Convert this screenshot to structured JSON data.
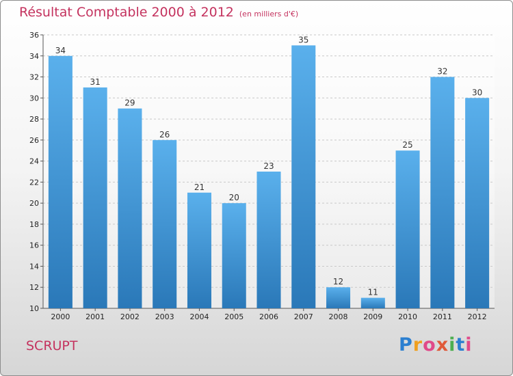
{
  "chart_data": {
    "type": "bar",
    "title": "Résultat Comptable 2000 à 2012",
    "subtitle": "(en milliers d'€)",
    "categories": [
      "2000",
      "2001",
      "2002",
      "2003",
      "2004",
      "2005",
      "2006",
      "2007",
      "2008",
      "2009",
      "2010",
      "2011",
      "2012"
    ],
    "values": [
      34,
      31,
      29,
      26,
      21,
      20,
      23,
      35,
      12,
      11,
      25,
      32,
      30
    ],
    "ylim": [
      10,
      36
    ],
    "yticks": [
      10,
      12,
      14,
      16,
      18,
      20,
      22,
      24,
      26,
      28,
      30,
      32,
      34,
      36
    ],
    "grid": true,
    "legend": "none",
    "colors": {
      "bar_top": "#5ab0ec",
      "bar_bottom": "#2a78b8",
      "grid": "#c8c8c8"
    }
  },
  "commune": "SCRUPT",
  "logo": {
    "letters": [
      "P",
      "r",
      "o",
      "x",
      "i",
      "t",
      "i"
    ],
    "colors": [
      "#2b7fd0",
      "#f0a020",
      "#e04a8a",
      "#e05a3a",
      "#4caf50",
      "#2b7fd0",
      "#e04a8a"
    ]
  }
}
